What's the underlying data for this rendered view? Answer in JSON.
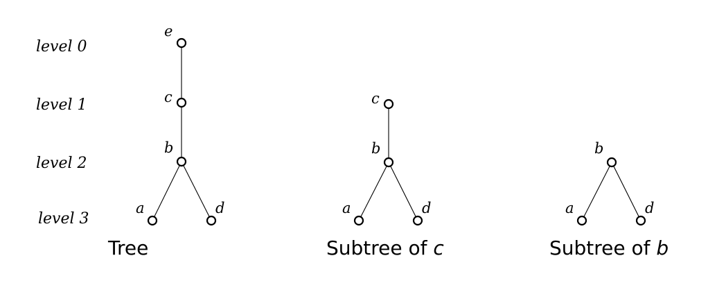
{
  "levels": [
    "level 0",
    "level 1",
    "level 2",
    "level 3"
  ],
  "trees": [
    {
      "id": "tree",
      "caption": "Tree",
      "caption_var": "",
      "nodes": [
        {
          "id": "e",
          "label": "e",
          "level": 0
        },
        {
          "id": "c",
          "label": "c",
          "level": 1
        },
        {
          "id": "b",
          "label": "b",
          "level": 2
        },
        {
          "id": "a",
          "label": "a",
          "level": 3
        },
        {
          "id": "d",
          "label": "d",
          "level": 3
        }
      ],
      "edges": [
        [
          "e",
          "c"
        ],
        [
          "c",
          "b"
        ],
        [
          "b",
          "a"
        ],
        [
          "b",
          "d"
        ]
      ]
    },
    {
      "id": "subtree-c",
      "caption": "Subtree of ",
      "caption_var": "c",
      "nodes": [
        {
          "id": "c",
          "label": "c",
          "level": 1
        },
        {
          "id": "b",
          "label": "b",
          "level": 2
        },
        {
          "id": "a",
          "label": "a",
          "level": 3
        },
        {
          "id": "d",
          "label": "d",
          "level": 3
        }
      ],
      "edges": [
        [
          "c",
          "b"
        ],
        [
          "b",
          "a"
        ],
        [
          "b",
          "d"
        ]
      ]
    },
    {
      "id": "subtree-b",
      "caption": "Subtree of ",
      "caption_var": "b",
      "nodes": [
        {
          "id": "b",
          "label": "b",
          "level": 2
        },
        {
          "id": "a",
          "label": "a",
          "level": 3
        },
        {
          "id": "d",
          "label": "d",
          "level": 3
        }
      ],
      "edges": [
        [
          "b",
          "a"
        ],
        [
          "b",
          "d"
        ]
      ]
    }
  ]
}
